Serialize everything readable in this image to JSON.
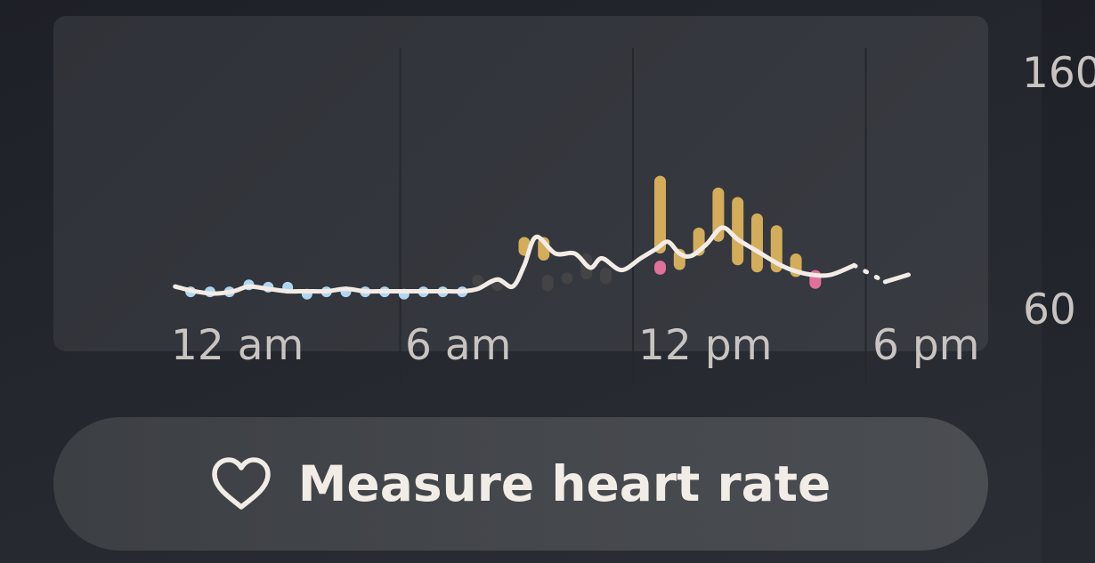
{
  "chart_data": {
    "type": "bar",
    "ylim": [
      60,
      160
    ],
    "y_ticks": [
      "160",
      "60"
    ],
    "x_tick_labels": [
      "12 am",
      "6 am",
      "12 pm",
      "6 pm"
    ],
    "x_range_hours": [
      0,
      24
    ],
    "grid": "vertical lines at 6 am, 12 pm, 6 pm",
    "series": [
      {
        "kind": "resting-ranges",
        "color": "#aed6f1",
        "ranges": [
          [
            0.6,
            66,
            69
          ],
          [
            1.1,
            65,
            69
          ],
          [
            1.6,
            66,
            69
          ],
          [
            2.1,
            68,
            72
          ],
          [
            2.6,
            67,
            71
          ],
          [
            3.1,
            66,
            71
          ],
          [
            3.6,
            65,
            68
          ],
          [
            4.1,
            66,
            69
          ],
          [
            4.6,
            66,
            69
          ],
          [
            5.1,
            66,
            69
          ],
          [
            5.6,
            65,
            69
          ],
          [
            6.1,
            65,
            68
          ],
          [
            6.6,
            65,
            69
          ],
          [
            7.1,
            65,
            69
          ],
          [
            7.6,
            65,
            69
          ]
        ]
      },
      {
        "kind": "dim-ranges",
        "color": "#444346",
        "ranges": [
          [
            8.0,
            70,
            74
          ],
          [
            8.5,
            68,
            72
          ],
          [
            9.8,
            67,
            74
          ],
          [
            10.3,
            71,
            75
          ],
          [
            10.8,
            72,
            83
          ],
          [
            11.3,
            70,
            77
          ]
        ]
      },
      {
        "kind": "active-ranges",
        "color": "#d4ad5a",
        "ranges": [
          [
            9.2,
            82,
            90
          ],
          [
            9.7,
            80,
            90
          ],
          [
            12.7,
            83,
            116
          ],
          [
            13.2,
            76,
            85
          ],
          [
            13.7,
            82,
            94
          ],
          [
            14.2,
            88,
            111
          ],
          [
            14.7,
            78,
            107
          ],
          [
            15.2,
            75,
            100
          ],
          [
            15.7,
            75,
            95
          ],
          [
            16.2,
            73,
            83
          ]
        ]
      },
      {
        "kind": "high-ranges",
        "color": "#e0719a",
        "ranges": [
          [
            12.7,
            74,
            80
          ],
          [
            16.7,
            68,
            76
          ]
        ]
      },
      {
        "kind": "heart-rate-line",
        "color": "#f3ece6",
        "points": [
          [
            0.2,
            69
          ],
          [
            0.7,
            67
          ],
          [
            1.2,
            66
          ],
          [
            1.7,
            67
          ],
          [
            2.1,
            69
          ],
          [
            2.6,
            68
          ],
          [
            3.1,
            67
          ],
          [
            3.6,
            67
          ],
          [
            4.1,
            67
          ],
          [
            4.6,
            68
          ],
          [
            5.1,
            67
          ],
          [
            5.6,
            67
          ],
          [
            6.1,
            67
          ],
          [
            6.6,
            67
          ],
          [
            7.1,
            67
          ],
          [
            7.6,
            67
          ],
          [
            8.0,
            68
          ],
          [
            8.5,
            72
          ],
          [
            8.9,
            69
          ],
          [
            9.2,
            78
          ],
          [
            9.5,
            90
          ],
          [
            10.0,
            83
          ],
          [
            10.5,
            83
          ],
          [
            10.9,
            77
          ],
          [
            11.2,
            81
          ],
          [
            11.7,
            76
          ],
          [
            12.2,
            81
          ],
          [
            12.6,
            85
          ],
          [
            12.9,
            88
          ],
          [
            13.2,
            83
          ],
          [
            13.5,
            82
          ],
          [
            13.9,
            87
          ],
          [
            14.3,
            94
          ],
          [
            14.7,
            89
          ],
          [
            15.2,
            84
          ],
          [
            15.7,
            79
          ],
          [
            16.1,
            76
          ],
          [
            16.6,
            74
          ],
          [
            17.1,
            74
          ],
          [
            17.7,
            78
          ]
        ]
      },
      {
        "kind": "gap-dotted",
        "color": "#f3ece6",
        "points": [
          [
            17.7,
            78
          ],
          [
            18.5,
            71
          ]
        ]
      },
      {
        "kind": "heart-rate-line-tail",
        "color": "#f3ece6",
        "points": [
          [
            18.5,
            71
          ],
          [
            19.1,
            74
          ]
        ]
      }
    ]
  },
  "button": {
    "label": "Measure heart rate",
    "icon": "heart-outline-icon"
  }
}
